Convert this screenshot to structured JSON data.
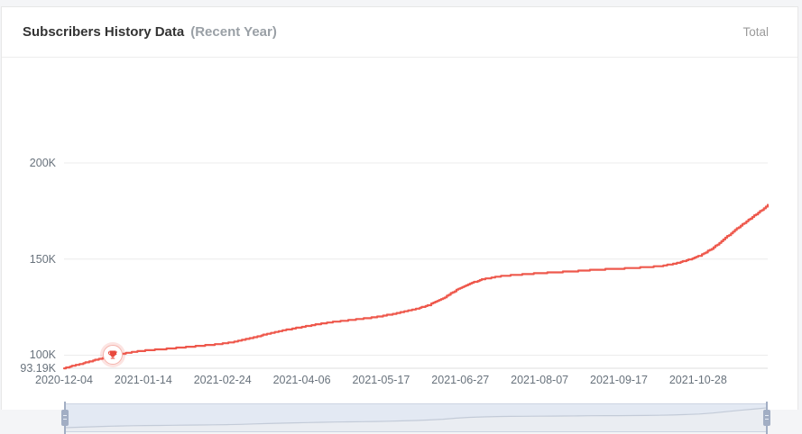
{
  "header": {
    "title": "Subscribers History Data",
    "subtitle": "(Recent Year)",
    "legend_total": "Total"
  },
  "colors": {
    "line": "#ee584c",
    "grid": "#ececec",
    "axis_line": "#dddddd",
    "axis_text": "#68727c",
    "slider_track": "#e3e9f3",
    "slider_area_fill": "#eaedf2",
    "slider_line": "#c3cbd8",
    "slider_handle": "#a2aec4",
    "milestone_red": "#e8493d"
  },
  "chart_data": {
    "type": "line",
    "title": "Subscribers History Data (Recent Year)",
    "series_name": "Total",
    "unit": "K",
    "ylim": [
      93.19,
      200
    ],
    "grid": "horizontal-only",
    "legend_position": "top-right",
    "x": [
      "2020-12-04",
      "2020-12-11",
      "2020-12-18",
      "2020-12-25",
      "2021-01-01",
      "2021-01-08",
      "2021-01-15",
      "2021-01-22",
      "2021-01-29",
      "2021-02-05",
      "2021-02-12",
      "2021-02-19",
      "2021-02-26",
      "2021-03-05",
      "2021-03-12",
      "2021-03-19",
      "2021-03-26",
      "2021-04-02",
      "2021-04-09",
      "2021-04-16",
      "2021-04-23",
      "2021-04-30",
      "2021-05-07",
      "2021-05-14",
      "2021-05-21",
      "2021-05-28",
      "2021-06-04",
      "2021-06-11",
      "2021-06-18",
      "2021-06-25",
      "2021-07-02",
      "2021-07-09",
      "2021-07-16",
      "2021-07-23",
      "2021-07-30",
      "2021-08-06",
      "2021-08-13",
      "2021-08-20",
      "2021-08-27",
      "2021-09-03",
      "2021-09-10",
      "2021-09-17",
      "2021-09-24",
      "2021-10-01",
      "2021-10-08",
      "2021-10-15",
      "2021-10-22",
      "2021-10-29",
      "2021-11-05",
      "2021-11-12",
      "2021-11-19",
      "2021-11-26",
      "2021-12-03"
    ],
    "values": [
      93.19,
      95.1,
      96.9,
      98.8,
      100.5,
      101.6,
      102.4,
      103.0,
      103.6,
      104.2,
      104.8,
      105.5,
      106.3,
      107.6,
      109.2,
      111.0,
      112.6,
      114.0,
      115.2,
      116.4,
      117.4,
      118.2,
      119.0,
      119.8,
      121.0,
      122.4,
      124.0,
      126.2,
      129.6,
      134.0,
      137.4,
      139.6,
      140.9,
      141.6,
      142.1,
      142.6,
      143.0,
      143.4,
      143.8,
      144.3,
      144.7,
      145.0,
      145.4,
      145.8,
      146.3,
      147.4,
      149.3,
      151.8,
      156.0,
      161.8,
      167.5,
      172.6,
      178.0
    ],
    "y_ticks": [
      {
        "label": "200K",
        "value": 200
      },
      {
        "label": "150K",
        "value": 150
      },
      {
        "label": "100K",
        "value": 100
      },
      {
        "label": "93.19K",
        "value": 93.19
      }
    ],
    "x_ticks": [
      "2020-12-04",
      "2021-01-14",
      "2021-02-24",
      "2021-04-06",
      "2021-05-17",
      "2021-06-27",
      "2021-08-07",
      "2021-09-17",
      "2021-10-28"
    ],
    "milestone": {
      "date": "2020-12-29",
      "value": 100,
      "label": "100K",
      "icon": "trophy-icon"
    }
  }
}
